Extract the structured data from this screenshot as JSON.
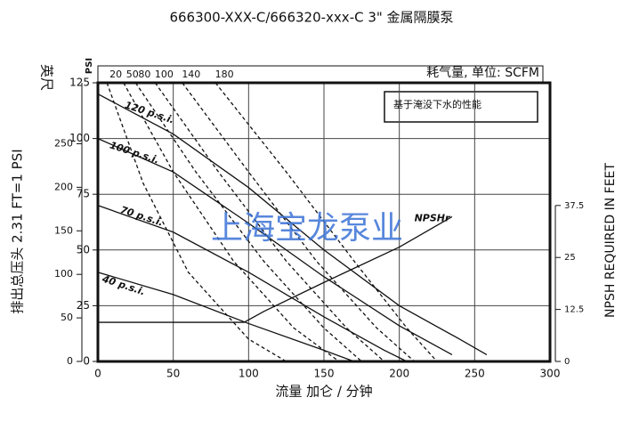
{
  "chart_data": {
    "type": "line",
    "title": "666300-XXX-C/666320-xxx-C 3\" 金属隔膜泵",
    "y_unit_label": "英尺",
    "y3_unit_label": "PSI",
    "ylabel": "排出总压头 2.31 FT=1 PSI",
    "y2label": "NPSH REQUIRED IN FEET",
    "xlabel": "流量 加仑 / 分钟",
    "air_label": "耗气量, 单位: SCFM",
    "note": "基于淹没下水的性能",
    "watermark": "上海宝龙泵业",
    "xlim": [
      0,
      300
    ],
    "xticks": [
      0,
      50,
      100,
      150,
      200,
      250,
      300
    ],
    "ylim": [
      0,
      125
    ],
    "yticks": [
      0,
      25,
      50,
      75,
      100,
      125
    ],
    "y3lim": [
      0,
      320
    ],
    "y3ticks": [
      0,
      50,
      100,
      150,
      200,
      250
    ],
    "y2lim": [
      0,
      67
    ],
    "y2ticks": [
      0,
      12.5,
      25,
      37.5
    ],
    "grid": true,
    "series": [
      {
        "name": "120 p.s.i.",
        "color": "#111",
        "x": [
          0,
          50,
          100,
          150,
          200,
          240,
          258
        ],
        "values": [
          120,
          102,
          78,
          50,
          25,
          10,
          3
        ]
      },
      {
        "name": "100 p.s.i.",
        "color": "#111",
        "x": [
          0,
          50,
          100,
          150,
          200,
          235
        ],
        "values": [
          100,
          85,
          62,
          38,
          16,
          3
        ]
      },
      {
        "name": "70 p.s.i.",
        "color": "#111",
        "x": [
          0,
          50,
          100,
          150,
          190,
          205
        ],
        "values": [
          70,
          58,
          40,
          20,
          5,
          0
        ]
      },
      {
        "name": "40 p.s.i.",
        "color": "#111",
        "x": [
          0,
          50,
          100,
          150,
          170
        ],
        "values": [
          40,
          30,
          17,
          5,
          0
        ]
      },
      {
        "name": "NPSHr",
        "color": "#111",
        "axis": "y2",
        "x": [
          0,
          97,
          110,
          150,
          200,
          235
        ],
        "values": [
          9.4,
          9.4,
          12,
          19,
          27.5,
          34.8
        ]
      }
    ],
    "air_series": [
      {
        "name": "20",
        "color": "#111",
        "x": [
          6,
          30,
          60,
          100,
          125
        ],
        "values": [
          125,
          80,
          40,
          10,
          0
        ]
      },
      {
        "name": "50",
        "color": "#111",
        "x": [
          17,
          50,
          90,
          130,
          160
        ],
        "values": [
          125,
          85,
          45,
          15,
          0
        ]
      },
      {
        "name": "80",
        "color": "#111",
        "x": [
          25,
          65,
          110,
          150,
          175
        ],
        "values": [
          125,
          85,
          45,
          15,
          0
        ]
      },
      {
        "name": "100",
        "color": "#111",
        "x": [
          38,
          80,
          125,
          165,
          190
        ],
        "values": [
          125,
          85,
          45,
          15,
          0
        ]
      },
      {
        "name": "140",
        "color": "#111",
        "x": [
          56,
          100,
          145,
          185,
          210
        ],
        "values": [
          125,
          85,
          45,
          15,
          0
        ]
      },
      {
        "name": "180",
        "color": "#111",
        "x": [
          78,
          125,
          170,
          205,
          225
        ],
        "values": [
          125,
          85,
          45,
          15,
          0
        ]
      }
    ]
  }
}
